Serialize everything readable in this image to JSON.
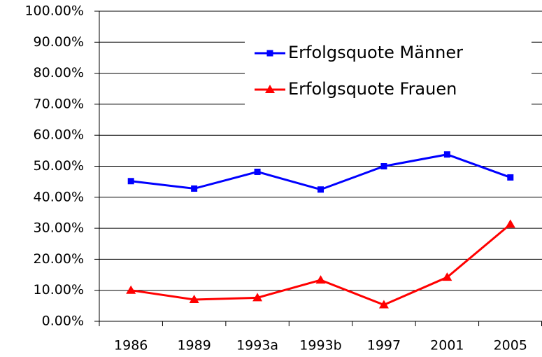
{
  "chart_data": {
    "type": "line",
    "categories": [
      "1986",
      "1989",
      "1993a",
      "1993b",
      "1997",
      "2001",
      "2005"
    ],
    "series": [
      {
        "name": "Erfolgsquote Männer",
        "color": "#0000ff",
        "marker": "square",
        "values": [
          45.2,
          42.8,
          48.2,
          42.5,
          50.0,
          53.8,
          46.4
        ]
      },
      {
        "name": "Erfolgsquote Frauen",
        "color": "#ff0000",
        "marker": "triangle",
        "values": [
          10.0,
          7.0,
          7.6,
          13.3,
          5.3,
          14.2,
          31.3
        ]
      }
    ],
    "ylim": [
      0,
      100
    ],
    "yticks": [
      {
        "value": 0,
        "label": "0.00%"
      },
      {
        "value": 10,
        "label": "10.00%"
      },
      {
        "value": 20,
        "label": "20.00%"
      },
      {
        "value": 30,
        "label": "30.00%"
      },
      {
        "value": 40,
        "label": "40.00%"
      },
      {
        "value": 50,
        "label": "50.00%"
      },
      {
        "value": 60,
        "label": "60.00%"
      },
      {
        "value": 70,
        "label": "70.00%"
      },
      {
        "value": 80,
        "label": "80.00%"
      },
      {
        "value": 90,
        "label": "90.00%"
      },
      {
        "value": 100,
        "label": "100.00%"
      }
    ],
    "grid": true,
    "legend": "upper right"
  }
}
